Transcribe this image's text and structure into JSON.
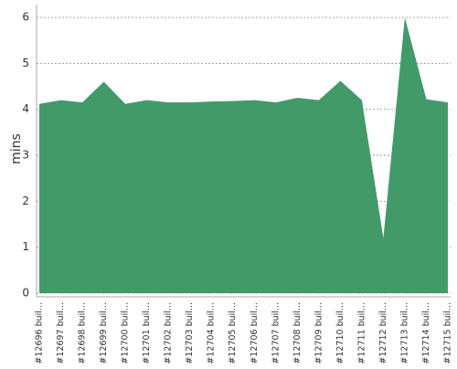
{
  "chart_data": {
    "type": "area",
    "y_label": "mins",
    "categories": [
      "#12696 buil...",
      "#12697 buil...",
      "#12698 buil...",
      "#12699 buil...",
      "#12700 buil...",
      "#12701 buil...",
      "#12702 buil...",
      "#12703 buil...",
      "#12704 buil...",
      "#12705 buil...",
      "#12706 buil...",
      "#12707 buil...",
      "#12708 buil...",
      "#12709 buil...",
      "#12710 buil...",
      "#12711 buil...",
      "#12712 buil...",
      "#12713 buil...",
      "#12714 buil...",
      "#12715 buil..."
    ],
    "values": [
      4.12,
      4.2,
      4.15,
      4.6,
      4.12,
      4.2,
      4.15,
      4.15,
      4.17,
      4.18,
      4.2,
      4.15,
      4.25,
      4.2,
      4.62,
      4.2,
      1.2,
      6.0,
      4.22,
      4.15
    ],
    "color": "#439a69",
    "ylim": [
      0,
      6.28
    ],
    "yticks": [
      0,
      1,
      2,
      3,
      4,
      5,
      6
    ],
    "grid": true
  }
}
